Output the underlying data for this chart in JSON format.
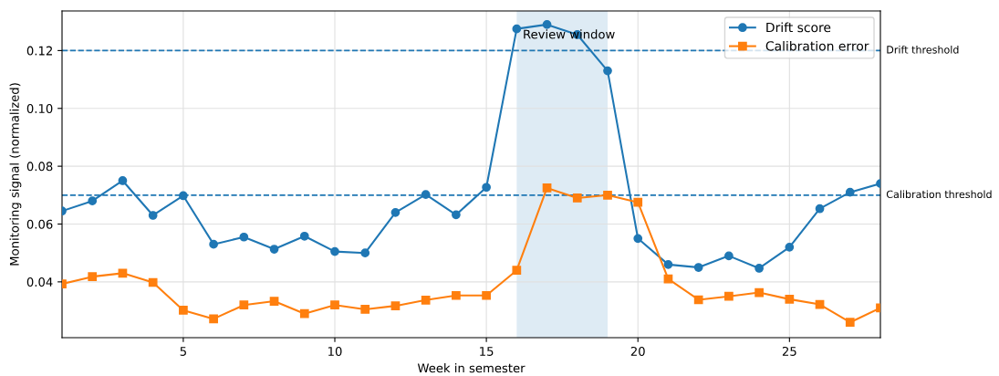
{
  "chart_data": {
    "type": "line",
    "xlabel": "Week in semester",
    "ylabel": "Monitoring signal (normalized)",
    "x": [
      1,
      2,
      3,
      4,
      5,
      6,
      7,
      8,
      9,
      10,
      11,
      12,
      13,
      14,
      15,
      16,
      17,
      18,
      19,
      20,
      21,
      22,
      23,
      24,
      25,
      26,
      27,
      28
    ],
    "series": [
      {
        "name": "Drift score",
        "color": "#1f77b4",
        "marker": "circle",
        "values": [
          0.0645,
          0.068,
          0.075,
          0.063,
          0.0698,
          0.053,
          0.0555,
          0.0513,
          0.0558,
          0.0505,
          0.05,
          0.064,
          0.0702,
          0.0632,
          0.0727,
          0.1275,
          0.129,
          0.1255,
          0.113,
          0.055,
          0.046,
          0.045,
          0.049,
          0.0447,
          0.052,
          0.0653,
          0.071,
          0.074
        ]
      },
      {
        "name": "Calibration error",
        "color": "#ff7f0e",
        "marker": "square",
        "values": [
          0.0393,
          0.0418,
          0.043,
          0.0398,
          0.0302,
          0.0272,
          0.032,
          0.0333,
          0.029,
          0.032,
          0.0305,
          0.0317,
          0.0337,
          0.0353,
          0.0353,
          0.044,
          0.0725,
          0.069,
          0.07,
          0.0675,
          0.041,
          0.0338,
          0.035,
          0.0363,
          0.034,
          0.0322,
          0.026,
          0.031
        ]
      }
    ],
    "xlim": [
      1,
      28
    ],
    "xticks": [
      5,
      10,
      15,
      20,
      25
    ],
    "ylim": [
      0.0207,
      0.1337
    ],
    "yticks": [
      {
        "value": 0.04,
        "label": "0.04"
      },
      {
        "value": 0.06,
        "label": "0.06"
      },
      {
        "value": 0.08,
        "label": "0.08"
      },
      {
        "value": 0.1,
        "label": "0.10"
      },
      {
        "value": 0.12,
        "label": "0.12"
      }
    ],
    "ref_lines": [
      {
        "axis": "y",
        "value": 0.12,
        "label": "Drift threshold",
        "color": "#1f77b4",
        "line_style": "dashed"
      },
      {
        "axis": "y",
        "value": 0.07,
        "label": "Calibration threshold",
        "color": "#1f77b4",
        "line_style": "dashed"
      }
    ],
    "bands": [
      {
        "axis": "x",
        "from": 16,
        "to": 19,
        "label": "Review window",
        "color": "#1f77b4"
      }
    ],
    "grid": true,
    "legend": "top right",
    "line_style": "solid"
  }
}
